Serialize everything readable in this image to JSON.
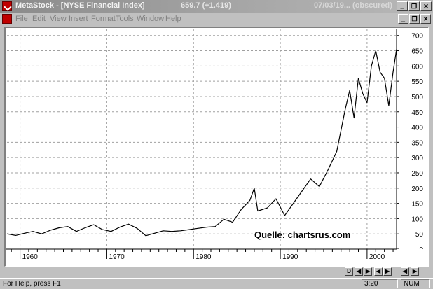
{
  "window": {
    "app_name": "MetaStock - [NYSE Financial Index]",
    "price_readout": "659.7 (+1.419)",
    "date_readout": "07/03/19... (obscured)",
    "minimize_glyph": "_",
    "restore_glyph": "❐",
    "close_glyph": "✕"
  },
  "menu": {
    "items": [
      "File",
      "Edit",
      "View",
      "Insert",
      "Format",
      "Tools",
      "Window",
      "Help"
    ]
  },
  "chart_data": {
    "type": "line",
    "title": "",
    "xlabel": "",
    "ylabel": "",
    "x_ticks": [
      "1960",
      "1970",
      "1980",
      "1990",
      "2000"
    ],
    "y_ticks": [
      "0",
      "50",
      "100",
      "150",
      "200",
      "250",
      "300",
      "350",
      "400",
      "450",
      "500",
      "550",
      "600",
      "650",
      "700"
    ],
    "ylim": [
      0,
      720
    ],
    "xlim": [
      1958.5,
      2003.4
    ],
    "grid": true,
    "annotation": "Quelle: chartsrus.com",
    "line_color": "#000000",
    "series": [
      {
        "points": [
          [
            1958.5,
            50
          ],
          [
            1959.5,
            45
          ],
          [
            1960.5,
            52
          ],
          [
            1961.5,
            58
          ],
          [
            1962.5,
            50
          ],
          [
            1963.5,
            62
          ],
          [
            1964.5,
            70
          ],
          [
            1965.5,
            74
          ],
          [
            1966.5,
            58
          ],
          [
            1967.5,
            70
          ],
          [
            1968.5,
            80
          ],
          [
            1969.5,
            64
          ],
          [
            1970.5,
            58
          ],
          [
            1971.5,
            72
          ],
          [
            1972.5,
            82
          ],
          [
            1973.5,
            68
          ],
          [
            1974.5,
            44
          ],
          [
            1975.5,
            52
          ],
          [
            1976.5,
            60
          ],
          [
            1977.5,
            58
          ],
          [
            1978.5,
            60
          ],
          [
            1979.5,
            64
          ],
          [
            1980.5,
            68
          ],
          [
            1981.5,
            72
          ],
          [
            1982.5,
            74
          ],
          [
            1983.5,
            98
          ],
          [
            1984.5,
            88
          ],
          [
            1985.5,
            130
          ],
          [
            1986.5,
            160
          ],
          [
            1987.0,
            200
          ],
          [
            1987.4,
            125
          ],
          [
            1988.5,
            135
          ],
          [
            1989.5,
            165
          ],
          [
            1990.5,
            110
          ],
          [
            1991.5,
            150
          ],
          [
            1992.5,
            190
          ],
          [
            1993.5,
            230
          ],
          [
            1994.5,
            205
          ],
          [
            1995.5,
            260
          ],
          [
            1996.5,
            320
          ],
          [
            1997.5,
            460
          ],
          [
            1998.0,
            520
          ],
          [
            1998.5,
            430
          ],
          [
            1999.0,
            560
          ],
          [
            1999.5,
            510
          ],
          [
            2000.0,
            480
          ],
          [
            2000.5,
            600
          ],
          [
            2001.0,
            650
          ],
          [
            2001.5,
            580
          ],
          [
            2002.0,
            560
          ],
          [
            2002.5,
            470
          ],
          [
            2003.0,
            580
          ],
          [
            2003.4,
            655
          ]
        ]
      }
    ]
  },
  "navigation": {
    "buttons": [
      "D",
      "◀",
      "▶",
      "◀",
      "▶",
      "◀",
      "▶"
    ]
  },
  "status": {
    "help_text": "For Help, press F1",
    "time": "3:20",
    "num_lock": "NUM"
  }
}
